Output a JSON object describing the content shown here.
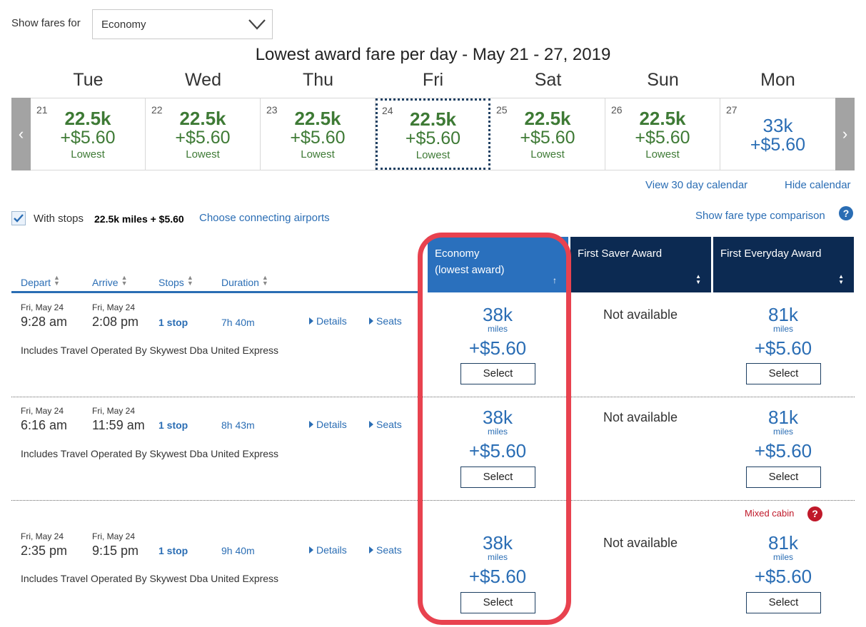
{
  "filter": {
    "label": "Show fares for",
    "cabin": "Economy"
  },
  "calendar": {
    "title": "Lowest award fare per day - May 21 - 27, 2019",
    "days": [
      {
        "name": "Tue",
        "num": "21",
        "miles": "22.5k",
        "tax": "+$5.60",
        "note": "Lowest"
      },
      {
        "name": "Wed",
        "num": "22",
        "miles": "22.5k",
        "tax": "+$5.60",
        "note": "Lowest"
      },
      {
        "name": "Thu",
        "num": "23",
        "miles": "22.5k",
        "tax": "+$5.60",
        "note": "Lowest"
      },
      {
        "name": "Fri",
        "num": "24",
        "miles": "22.5k",
        "tax": "+$5.60",
        "note": "Lowest"
      },
      {
        "name": "Sat",
        "num": "25",
        "miles": "22.5k",
        "tax": "+$5.60",
        "note": "Lowest"
      },
      {
        "name": "Sun",
        "num": "26",
        "miles": "22.5k",
        "tax": "+$5.60",
        "note": "Lowest"
      },
      {
        "name": "Mon",
        "num": "27",
        "miles": "33k",
        "tax": "+$5.60",
        "note": ""
      }
    ],
    "view30": "View 30 day calendar",
    "hide": "Hide calendar"
  },
  "stops": {
    "label": "With stops",
    "price": "22.5k miles + $5.60",
    "choose": "Choose connecting airports",
    "compare": "Show fare type comparison"
  },
  "columns": {
    "depart": "Depart",
    "arrive": "Arrive",
    "stops": "Stops",
    "duration": "Duration",
    "economy_1": "Economy",
    "economy_2": "(lowest award)",
    "first_saver": "First Saver Award",
    "first_everyday": "First Everyday Award"
  },
  "flights": [
    {
      "dep_date": "Fri, May 24",
      "dep_time": "9:28 am",
      "arr_date": "Fri, May 24",
      "arr_time": "2:08 pm",
      "stops": "1 stop",
      "duration": "7h 40m",
      "details": "Details",
      "seats": "Seats",
      "operated": "Includes Travel Operated By Skywest Dba United Express",
      "econ_miles": "38k",
      "econ_unit": "miles",
      "econ_tax": "+$5.60",
      "saver": "Not available",
      "everyday_miles": "81k",
      "everyday_unit": "miles",
      "everyday_tax": "+$5.60",
      "select": "Select"
    },
    {
      "dep_date": "Fri, May 24",
      "dep_time": "6:16 am",
      "arr_date": "Fri, May 24",
      "arr_time": "11:59 am",
      "stops": "1 stop",
      "duration": "8h 43m",
      "details": "Details",
      "seats": "Seats",
      "operated": "Includes Travel Operated By Skywest Dba United Express",
      "econ_miles": "38k",
      "econ_unit": "miles",
      "econ_tax": "+$5.60",
      "saver": "Not available",
      "everyday_miles": "81k",
      "everyday_unit": "miles",
      "everyday_tax": "+$5.60",
      "select": "Select"
    },
    {
      "dep_date": "Fri, May 24",
      "dep_time": "2:35 pm",
      "arr_date": "Fri, May 24",
      "arr_time": "9:15 pm",
      "stops": "1 stop",
      "duration": "9h 40m",
      "details": "Details",
      "seats": "Seats",
      "operated": "Includes Travel Operated By Skywest Dba United Express",
      "econ_miles": "38k",
      "econ_unit": "miles",
      "econ_tax": "+$5.60",
      "saver": "Not available",
      "everyday_miles": "81k",
      "everyday_unit": "miles",
      "everyday_tax": "+$5.60",
      "select": "Select",
      "mixed": "Mixed cabin"
    }
  ],
  "colors": {
    "link": "#2a6db4",
    "green": "#3e7a35",
    "economy_header": "#2a70bd",
    "first_header": "#0c2a52",
    "highlight": "#e8424f",
    "mixed": "#c0192a"
  }
}
